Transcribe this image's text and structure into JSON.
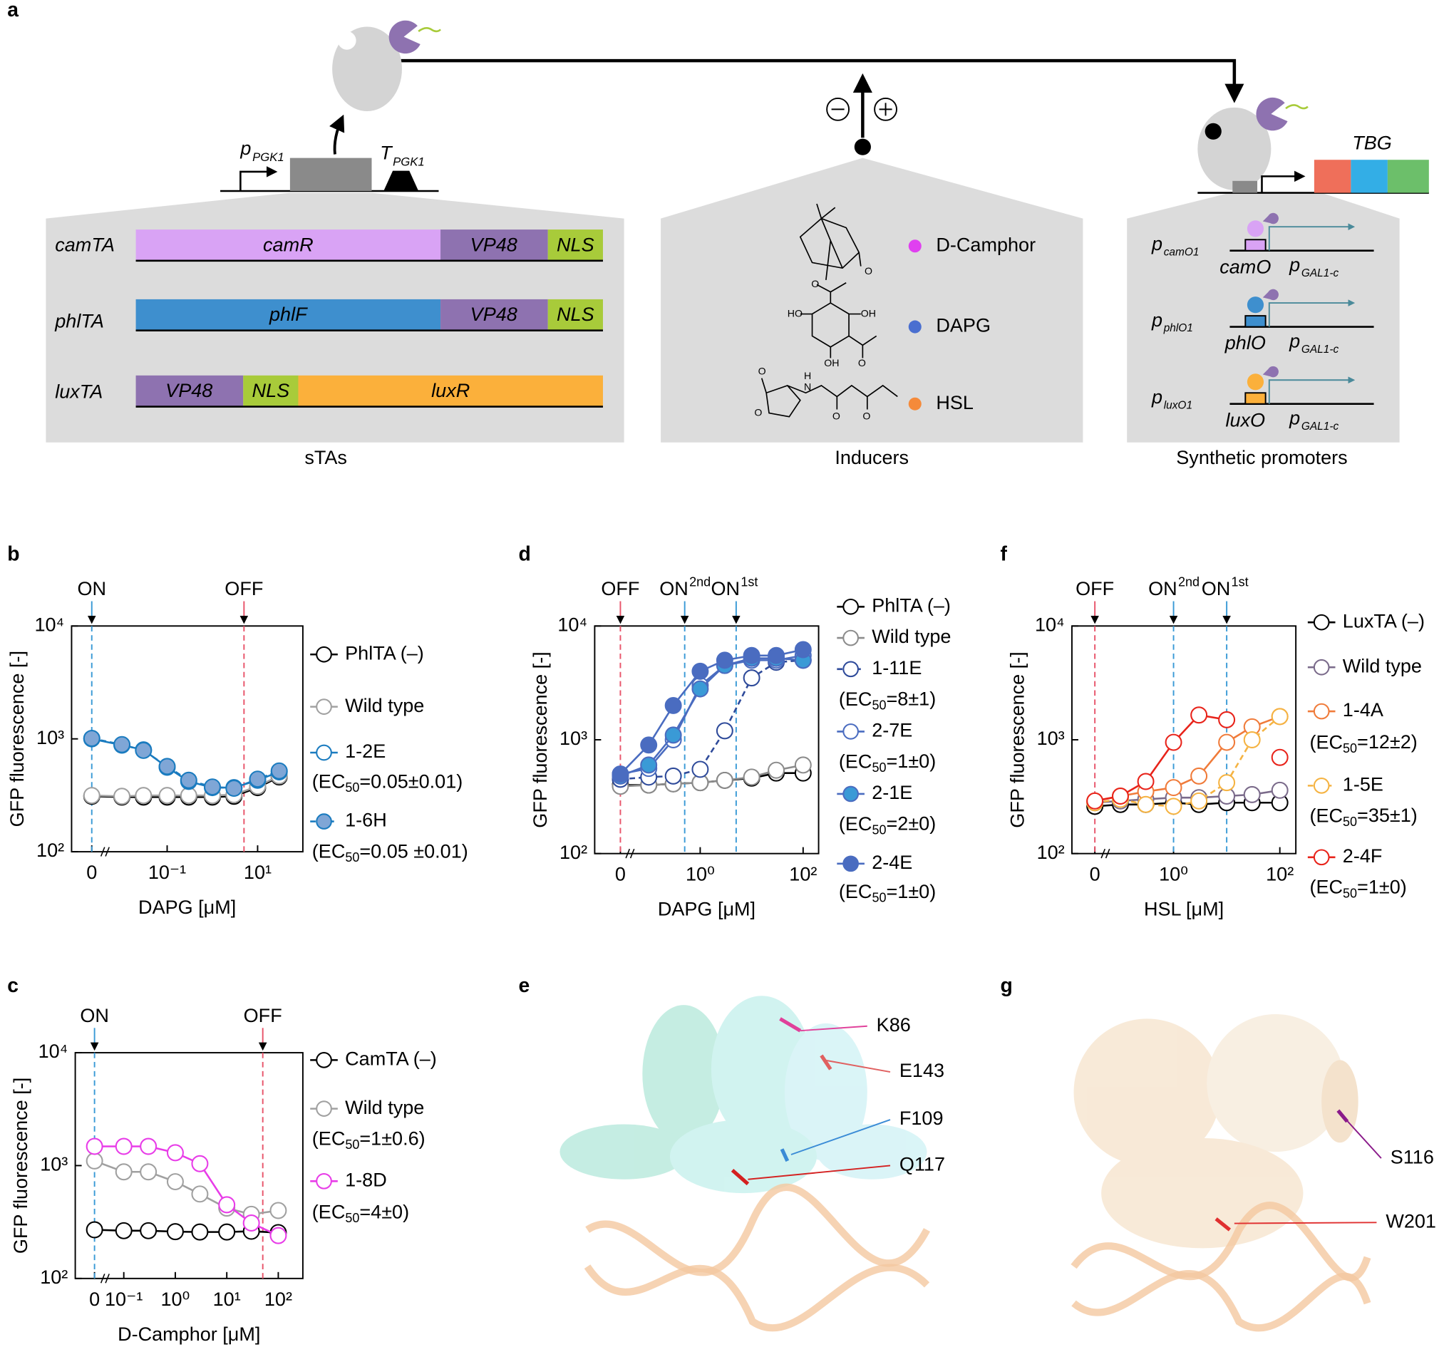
{
  "panel_a": {
    "label": "a",
    "promoter": "p",
    "promoter_sub": "PGK1",
    "terminator": "T",
    "terminator_sub": "PGK1",
    "rows": [
      {
        "name": "camTA",
        "parts": [
          "camR",
          "VP48",
          "NLS"
        ]
      },
      {
        "name": "phlTA",
        "parts": [
          "phlF",
          "VP48",
          "NLS"
        ]
      },
      {
        "name": "luxTA",
        "parts": [
          "VP48",
          "NLS",
          "luxR"
        ]
      }
    ],
    "sta_caption": "sTAs",
    "inducers": [
      {
        "name": "D-Camphor",
        "color": "#e040f0"
      },
      {
        "name": "DAPG",
        "color": "#4a6fd0"
      },
      {
        "name": "HSL",
        "color": "#f58a3a"
      }
    ],
    "camphor_atoms": [
      "O"
    ],
    "dapg_atoms": [
      "O",
      "HO",
      "OH",
      "OH",
      "O"
    ],
    "hsl_atoms": [
      "O",
      "O",
      "H",
      "N",
      "O",
      "O"
    ],
    "inducer_caption": "Inducers",
    "reporter": "TBG",
    "promoters": [
      {
        "name": "p",
        "name_sub": "camO1",
        "operator": "camO",
        "core": "p",
        "core_sub": "GAL1-c",
        "color": "#d9a3f5"
      },
      {
        "name": "p",
        "name_sub": "phlO1",
        "operator": "phlO",
        "core": "p",
        "core_sub": "GAL1-c",
        "color": "#3e8fce"
      },
      {
        "name": "p",
        "name_sub": "luxO1",
        "operator": "luxO",
        "core": "p",
        "core_sub": "GAL1-c",
        "color": "#fbb03b"
      }
    ],
    "promoter_caption": "Synthetic promoters"
  },
  "structures": [
    {
      "label": "e",
      "residues": [
        {
          "name": "K86",
          "color": "#e0409a"
        },
        {
          "name": "E143",
          "color": "#e06060"
        },
        {
          "name": "F109",
          "color": "#3a8bd6"
        },
        {
          "name": "Q117",
          "color": "#d42020"
        }
      ]
    },
    {
      "label": "g",
      "residues": [
        {
          "name": "S116",
          "color": "#8a1a8a"
        },
        {
          "name": "W201",
          "color": "#e03030"
        }
      ]
    }
  ],
  "chart_data": [
    {
      "panel": "b",
      "type": "line",
      "xlog": true,
      "ylog": true,
      "xlabel": "DAPG  [μM]",
      "ylabel": "GFP fluorescence [-]",
      "x": [
        0,
        0.01,
        0.03,
        0.1,
        0.3,
        1,
        3,
        10,
        30
      ],
      "xlim": [
        0.005,
        100
      ],
      "xticks": [
        0,
        {
          "value": 0.1,
          "label": "10⁻¹"
        },
        {
          "value": 10,
          "label": "10¹"
        }
      ],
      "ylim": [
        100,
        10000
      ],
      "yticks": [
        {
          "value": 100,
          "label": "10²"
        },
        {
          "value": 1000,
          "label": "10³"
        },
        {
          "value": 10000,
          "label": "10⁴"
        }
      ],
      "markers": [
        {
          "label": "ON",
          "x": 0,
          "color": "#3a9ad6"
        },
        {
          "label": "OFF",
          "x": 5,
          "color": "#e8546a"
        }
      ],
      "series": [
        {
          "name": "PhlTA (–)",
          "color": "#000000",
          "text_color": "#000000",
          "marker": "open",
          "dash": false,
          "values": [
            310,
            305,
            305,
            305,
            305,
            305,
            310,
            370,
            460
          ]
        },
        {
          "name": "Wild type",
          "color": "#a0a0a0",
          "text_color": "#000000",
          "marker": "open",
          "dash": false,
          "values": [
            315,
            310,
            315,
            315,
            315,
            315,
            320,
            380,
            470
          ]
        },
        {
          "name": "1-2E",
          "ec50": "(EC50=0.05±0.01)",
          "color": "#1a7bbf",
          "text_color": "#1a7bbf",
          "marker": "open",
          "dash": false,
          "values": [
            1000,
            880,
            800,
            560,
            420,
            370,
            370,
            430,
            510
          ]
        },
        {
          "name": "1-6H",
          "ec50": "(EC50=0.05 ±0.01)",
          "color": "#1a7bbf",
          "fill": "#7fa6d6",
          "text_color": "#1a7bbf",
          "marker": "filled",
          "dash": true,
          "values": [
            1010,
            890,
            790,
            570,
            430,
            375,
            365,
            440,
            520
          ]
        }
      ]
    },
    {
      "panel": "c",
      "type": "line",
      "xlog": true,
      "ylog": true,
      "xlabel": "D-Camphor  [μM]",
      "ylabel": "GFP fluorescence [-]",
      "x": [
        0,
        0.1,
        0.3,
        1,
        3,
        10,
        30,
        100
      ],
      "xlim": [
        0.05,
        300
      ],
      "xticks": [
        0,
        {
          "value": 0.1,
          "label": "10⁻¹"
        },
        {
          "value": 1,
          "label": "10⁰"
        },
        {
          "value": 10,
          "label": "10¹"
        },
        {
          "value": 100,
          "label": "10²"
        }
      ],
      "ylim": [
        100,
        10000
      ],
      "yticks": [
        {
          "value": 100,
          "label": "10²"
        },
        {
          "value": 1000,
          "label": "10³"
        },
        {
          "value": 10000,
          "label": "10⁴"
        }
      ],
      "markers": [
        {
          "label": "ON",
          "x": 0,
          "color": "#3a9ad6"
        },
        {
          "label": "OFF",
          "x": 50,
          "color": "#e8546a"
        }
      ],
      "series": [
        {
          "name": "CamTA (–)",
          "color": "#000000",
          "text_color": "#000000",
          "marker": "open",
          "dash": false,
          "values": [
            270,
            265,
            265,
            260,
            258,
            258,
            262,
            255
          ]
        },
        {
          "name": "Wild type",
          "ec50": "(EC50=1±0.6)",
          "color": "#a0a0a0",
          "text_color": "#000000",
          "marker": "open",
          "dash": false,
          "values": [
            1100,
            880,
            880,
            720,
            560,
            420,
            370,
            400
          ]
        },
        {
          "name": "1-8D",
          "ec50": "(EC50=4±0)",
          "color": "#e83ce8",
          "text_color": "#e83ce8",
          "marker": "open",
          "dash": false,
          "values": [
            1480,
            1480,
            1480,
            1300,
            1040,
            450,
            310,
            240
          ]
        }
      ]
    },
    {
      "panel": "d",
      "type": "line",
      "xlog": true,
      "ylog": true,
      "xlabel": "DAPG  [μM]",
      "ylabel": "GFP fluorescence [-]",
      "x": [
        0,
        0.1,
        0.3,
        1,
        3,
        10,
        30,
        100
      ],
      "xlim": [
        0.05,
        200
      ],
      "xticks": [
        0,
        {
          "value": 1,
          "label": "10⁰"
        },
        {
          "value": 100,
          "label": "10²"
        }
      ],
      "ylim": [
        100,
        10000
      ],
      "yticks": [
        {
          "value": 100,
          "label": "10²"
        },
        {
          "value": 1000,
          "label": "10³"
        },
        {
          "value": 10000,
          "label": "10⁴"
        }
      ],
      "markers": [
        {
          "label": "OFF",
          "x": 0,
          "color": "#e8546a"
        },
        {
          "label": "ON",
          "sup": "2nd",
          "x": 0.5,
          "color": "#3a9ad6"
        },
        {
          "label": "ON",
          "sup": "1st",
          "x": 5,
          "color": "#3a9ad6"
        }
      ],
      "series": [
        {
          "name": "PhlTA (–)",
          "color": "#000000",
          "text_color": "#000000",
          "marker": "open",
          "dash": false,
          "values": [
            400,
            400,
            410,
            420,
            440,
            460,
            510,
            510
          ]
        },
        {
          "name": "Wild type",
          "color": "#8c8c8c",
          "text_color": "#000000",
          "marker": "open",
          "dash": false,
          "values": [
            390,
            400,
            410,
            420,
            440,
            470,
            540,
            600
          ]
        },
        {
          "name": "1-11E",
          "ec50": "(EC50=8±1)",
          "color": "#2e4a9a",
          "text_color": "#3a5bb0",
          "marker": "open",
          "dash": true,
          "values": [
            450,
            470,
            480,
            550,
            1200,
            3500,
            4800,
            5000
          ]
        },
        {
          "name": "2-7E",
          "ec50": "(EC50=1±0)",
          "color": "#4a6cc0",
          "text_color": "#3a5bb0",
          "marker": "open",
          "dash": false,
          "values": [
            500,
            560,
            1000,
            3000,
            4500,
            5000,
            5000,
            5500
          ]
        },
        {
          "name": "2-1E",
          "ec50": "(EC50=2±0)",
          "color": "#4a6cc0",
          "fill": "#3a9ad6",
          "text_color": "#3a5bb0",
          "marker": "filled",
          "dash": false,
          "values": [
            480,
            600,
            1100,
            2800,
            4500,
            5200,
            5200,
            5000
          ]
        },
        {
          "name": "2-4E",
          "ec50": "(EC50=1±0)",
          "color": "#4a6cc0",
          "fill": "#4a6cc0",
          "text_color": "#3a5bb0",
          "marker": "filled",
          "dash": false,
          "values": [
            500,
            900,
            2000,
            4000,
            5000,
            5500,
            5500,
            6200
          ]
        }
      ]
    },
    {
      "panel": "f",
      "type": "line",
      "xlog": true,
      "ylog": true,
      "xlabel": "HSL [μM]",
      "ylabel": "GFP fluorescence [-]",
      "x": [
        0,
        0.1,
        0.3,
        1,
        3,
        10,
        30,
        100
      ],
      "xlim": [
        0.06,
        200
      ],
      "xticks": [
        0,
        {
          "value": 1,
          "label": "10⁰"
        },
        {
          "value": 100,
          "label": "10²"
        }
      ],
      "ylim": [
        100,
        10000
      ],
      "yticks": [
        {
          "value": 100,
          "label": "10²"
        },
        {
          "value": 1000,
          "label": "10³"
        },
        {
          "value": 10000,
          "label": "10⁴"
        }
      ],
      "markers": [
        {
          "label": "OFF",
          "x": 0,
          "color": "#e8546a"
        },
        {
          "label": "ON",
          "sup": "2nd",
          "x": 1,
          "color": "#3a9ad6"
        },
        {
          "label": "ON",
          "sup": "1st",
          "x": 10,
          "color": "#3a9ad6"
        }
      ],
      "series": [
        {
          "name": "LuxTA (–)",
          "color": "#000000",
          "text_color": "#000000",
          "marker": "open",
          "dash": false,
          "values": [
            260,
            270,
            270,
            280,
            270,
            280,
            280,
            280
          ]
        },
        {
          "name": "Wild type",
          "color": "#7a6a8a",
          "text_color": "#000000",
          "marker": "open",
          "dash": false,
          "values": [
            280,
            290,
            300,
            310,
            310,
            320,
            330,
            360
          ]
        },
        {
          "name": "1-4A",
          "ec50": "(EC50=12±2)",
          "color": "#f07b3a",
          "text_color": "#f07b3a",
          "marker": "open",
          "dash": false,
          "values": [
            290,
            320,
            350,
            380,
            480,
            950,
            1300,
            1600
          ]
        },
        {
          "name": "1-5E",
          "ec50": "(EC50=35±1)",
          "color": "#f5b342",
          "text_color": "#f5b342",
          "marker": "open",
          "dash": true,
          "values": [
            280,
            300,
            270,
            260,
            290,
            420,
            1000,
            1600
          ]
        },
        {
          "name": "2-4F",
          "ec50": "(EC50=1±0)",
          "color": "#e8231a",
          "text_color": "#e8231a",
          "marker": "open",
          "dash": false,
          "values": [
            290,
            320,
            430,
            950,
            1650,
            1500,
            null,
            700
          ]
        }
      ]
    }
  ]
}
